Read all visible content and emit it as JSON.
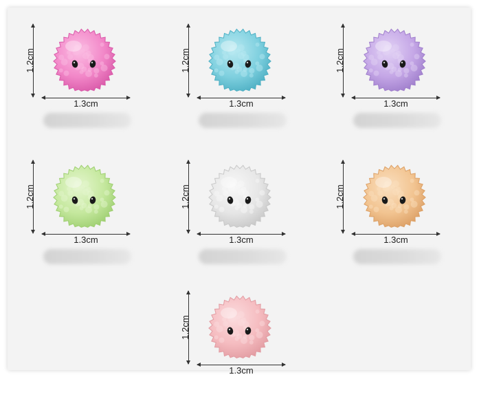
{
  "dimensions": {
    "height_label": "1.2cm",
    "width_label": "1.3cm"
  },
  "items": [
    {
      "color": "#f287c8",
      "shade": "#d95aa9",
      "light": "#fbbde3"
    },
    {
      "color": "#7fd0df",
      "shade": "#4fb0c4",
      "light": "#b8e9f1"
    },
    {
      "color": "#c4a6e6",
      "shade": "#a07fcc",
      "light": "#e2d2f5"
    },
    {
      "color": "#c5e89e",
      "shade": "#9fcf72",
      "light": "#e5f6cf"
    },
    {
      "color": "#e6e6e6",
      "shade": "#c8c8c8",
      "light": "#f8f8f8"
    },
    {
      "color": "#f2c491",
      "shade": "#dca066",
      "light": "#fadfbf"
    },
    {
      "color": "#f5bcc0",
      "shade": "#e29ca2",
      "light": "#fbdcde"
    }
  ]
}
